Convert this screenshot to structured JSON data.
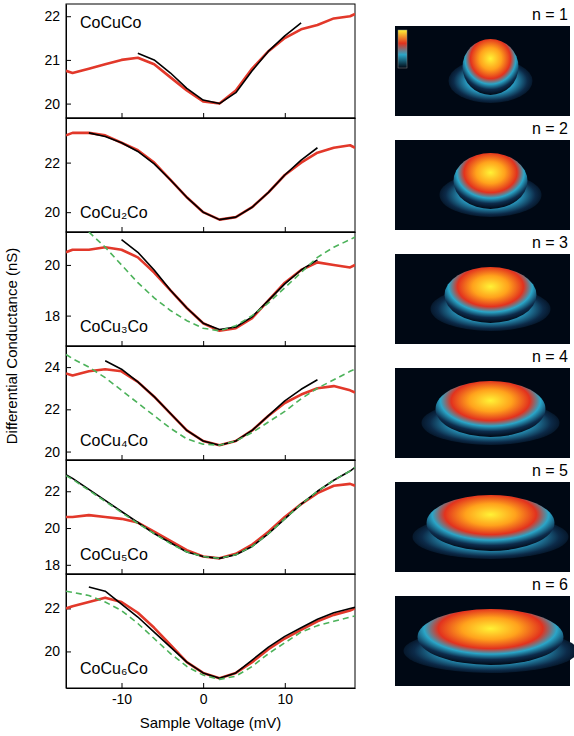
{
  "chart_data": [
    {
      "type": "line",
      "title": "CoCuCo",
      "y_label": "Differential Conductance (nS)",
      "annotations": [
        "n = 1"
      ],
      "xlim": [
        -16.8,
        18.6
      ],
      "xticks": [
        -10,
        0,
        10
      ],
      "ylim": [
        19.67,
        22.28
      ],
      "yticks": [
        20,
        21,
        22
      ],
      "tick_labels": "y",
      "x": [
        -16.8,
        -16,
        -14,
        -12,
        -10,
        -8,
        -6,
        -4,
        -2,
        0,
        2,
        4,
        6,
        8,
        10,
        12,
        14,
        16,
        18,
        18.6
      ],
      "series": [
        {
          "color": "#e2382a",
          "line_style": "solid",
          "values": [
            20.75,
            20.7,
            20.8,
            20.9,
            21.0,
            21.05,
            20.9,
            20.6,
            20.3,
            20.05,
            20.0,
            20.3,
            20.8,
            21.2,
            21.5,
            21.7,
            21.8,
            21.95,
            22.0,
            22.05
          ]
        },
        {
          "color": "#000000",
          "line_style": "solid",
          "values": [
            null,
            null,
            null,
            null,
            null,
            21.15,
            21.0,
            20.7,
            20.35,
            20.08,
            20.0,
            20.25,
            20.75,
            21.2,
            21.55,
            21.85,
            null,
            null,
            null,
            null
          ]
        }
      ]
    },
    {
      "type": "line",
      "title": "CoCu₂Co",
      "annotations": [
        "n = 2"
      ],
      "xlim": [
        -16.8,
        18.6
      ],
      "xticks": [
        -10,
        0,
        10
      ],
      "ylim": [
        19.2,
        23.8
      ],
      "yticks": [
        20,
        22
      ],
      "tick_labels": "y",
      "x": [
        -16.8,
        -16,
        -14,
        -12,
        -10,
        -8,
        -6,
        -4,
        -2,
        0,
        2,
        4,
        6,
        8,
        10,
        12,
        14,
        16,
        18,
        18.6
      ],
      "series": [
        {
          "color": "#e2382a",
          "line_style": "solid",
          "values": [
            23.1,
            23.2,
            23.2,
            23.1,
            22.8,
            22.5,
            22.0,
            21.3,
            20.6,
            20.0,
            19.7,
            19.8,
            20.2,
            20.8,
            21.5,
            22.0,
            22.4,
            22.6,
            22.7,
            22.6
          ]
        },
        {
          "color": "#000000",
          "line_style": "solid",
          "values": [
            null,
            null,
            23.2,
            23.05,
            22.8,
            22.45,
            21.95,
            21.3,
            20.6,
            20.0,
            19.7,
            19.8,
            20.2,
            20.8,
            21.5,
            22.1,
            22.6,
            null,
            null,
            null
          ]
        }
      ]
    },
    {
      "type": "line",
      "title": "CoCu₃Co",
      "annotations": [
        "n = 3"
      ],
      "xlim": [
        -16.8,
        18.6
      ],
      "xticks": [
        -10,
        0,
        10
      ],
      "ylim": [
        16.8,
        21.3
      ],
      "yticks": [
        18,
        20
      ],
      "tick_labels": "y",
      "x": [
        -16.8,
        -16,
        -14,
        -12,
        -10,
        -8,
        -6,
        -4,
        -2,
        0,
        2,
        4,
        6,
        8,
        10,
        12,
        14,
        16,
        18,
        18.6
      ],
      "series": [
        {
          "color": "#e2382a",
          "line_style": "solid",
          "values": [
            20.5,
            20.6,
            20.6,
            20.7,
            20.6,
            20.3,
            19.7,
            19.0,
            18.3,
            17.7,
            17.4,
            17.5,
            17.9,
            18.6,
            19.3,
            19.8,
            20.1,
            20.0,
            19.9,
            20.0
          ]
        },
        {
          "color": "#000000",
          "line_style": "solid",
          "values": [
            null,
            null,
            null,
            null,
            21.0,
            20.5,
            19.8,
            19.0,
            18.3,
            17.7,
            17.45,
            17.55,
            17.95,
            18.6,
            19.25,
            19.8,
            20.2,
            null,
            null,
            null
          ]
        },
        {
          "color": "#4cb25a",
          "line_style": "dashed",
          "values": [
            null,
            null,
            21.3,
            20.7,
            20.0,
            19.3,
            18.7,
            18.2,
            17.8,
            17.5,
            17.4,
            17.6,
            18.0,
            18.5,
            19.1,
            19.7,
            20.3,
            20.7,
            21.0,
            21.1
          ]
        }
      ]
    },
    {
      "type": "line",
      "title": "CoCu₄Co",
      "annotations": [
        "n = 4"
      ],
      "xlim": [
        -16.8,
        18.6
      ],
      "xticks": [
        -10,
        0,
        10
      ],
      "ylim": [
        19.6,
        25.0
      ],
      "yticks": [
        20,
        22,
        24
      ],
      "tick_labels": "y",
      "x": [
        -16.8,
        -16,
        -14,
        -12,
        -10,
        -8,
        -6,
        -4,
        -2,
        0,
        2,
        4,
        6,
        8,
        10,
        12,
        14,
        16,
        18,
        18.6
      ],
      "series": [
        {
          "color": "#e2382a",
          "line_style": "solid",
          "values": [
            23.7,
            23.6,
            23.8,
            23.9,
            23.8,
            23.3,
            22.6,
            21.8,
            21.0,
            20.5,
            20.3,
            20.5,
            21.0,
            21.7,
            22.3,
            22.7,
            23.0,
            23.1,
            22.9,
            22.8
          ]
        },
        {
          "color": "#000000",
          "line_style": "solid",
          "values": [
            null,
            null,
            null,
            24.3,
            23.9,
            23.3,
            22.6,
            21.8,
            21.0,
            20.5,
            20.3,
            20.5,
            21.0,
            21.7,
            22.4,
            22.95,
            23.4,
            null,
            null,
            null
          ]
        },
        {
          "color": "#4cb25a",
          "line_style": "dashed",
          "values": [
            24.6,
            24.4,
            24.0,
            23.5,
            22.9,
            22.3,
            21.7,
            21.1,
            20.6,
            20.35,
            20.3,
            20.5,
            20.9,
            21.4,
            21.9,
            22.5,
            23.0,
            23.4,
            23.8,
            23.9
          ]
        }
      ]
    },
    {
      "type": "line",
      "title": "CoCu₅Co",
      "annotations": [
        "n = 5"
      ],
      "xlim": [
        -16.8,
        18.6
      ],
      "xticks": [
        -10,
        0,
        10
      ],
      "ylim": [
        17.5,
        23.7
      ],
      "yticks": [
        18,
        20,
        22
      ],
      "tick_labels": "y",
      "x": [
        -16.8,
        -16,
        -14,
        -12,
        -10,
        -8,
        -6,
        -4,
        -2,
        0,
        2,
        4,
        6,
        8,
        10,
        12,
        14,
        16,
        18,
        18.6
      ],
      "series": [
        {
          "color": "#e2382a",
          "line_style": "solid",
          "values": [
            20.6,
            20.6,
            20.7,
            20.6,
            20.5,
            20.3,
            19.8,
            19.3,
            18.8,
            18.45,
            18.35,
            18.6,
            19.1,
            19.8,
            20.6,
            21.3,
            21.9,
            22.3,
            22.4,
            22.3
          ]
        },
        {
          "color": "#000000",
          "line_style": "solid",
          "values": [
            22.9,
            22.7,
            22.1,
            21.5,
            20.9,
            20.3,
            19.7,
            19.2,
            18.7,
            18.45,
            18.35,
            18.55,
            19.0,
            19.7,
            20.5,
            21.3,
            22.0,
            22.6,
            23.1,
            23.3
          ]
        },
        {
          "color": "#4cb25a",
          "line_style": "dashed",
          "values": [
            22.85,
            22.65,
            22.05,
            21.45,
            20.85,
            20.25,
            19.7,
            19.15,
            18.7,
            18.45,
            18.35,
            18.55,
            19.0,
            19.7,
            20.5,
            21.3,
            22.0,
            22.6,
            23.1,
            23.3
          ]
        }
      ]
    },
    {
      "type": "line",
      "title": "CoCu₆Co",
      "x_label": "Sample Voltage (mV)",
      "annotations": [
        "n = 6"
      ],
      "xlim": [
        -16.8,
        18.6
      ],
      "xticks": [
        -10,
        0,
        10
      ],
      "ylim": [
        18.3,
        23.6
      ],
      "yticks": [
        20,
        22
      ],
      "x": [
        -16.8,
        -16,
        -14,
        -12,
        -10,
        -8,
        -6,
        -4,
        -2,
        0,
        2,
        4,
        6,
        8,
        10,
        12,
        14,
        16,
        18,
        18.6
      ],
      "series": [
        {
          "color": "#e2382a",
          "line_style": "solid",
          "values": [
            22.0,
            22.1,
            22.3,
            22.5,
            22.3,
            21.8,
            21.1,
            20.3,
            19.5,
            19.0,
            18.75,
            19.0,
            19.5,
            20.1,
            20.6,
            21.0,
            21.4,
            21.7,
            21.9,
            22.0
          ]
        },
        {
          "color": "#000000",
          "line_style": "solid",
          "values": [
            null,
            null,
            23.0,
            22.8,
            22.2,
            21.6,
            20.9,
            20.2,
            19.5,
            19.0,
            18.75,
            19.0,
            19.6,
            20.2,
            20.7,
            21.1,
            21.5,
            21.8,
            22.0,
            22.05
          ]
        },
        {
          "color": "#4cb25a",
          "line_style": "dashed",
          "values": [
            22.8,
            22.75,
            22.6,
            22.3,
            21.9,
            21.3,
            20.6,
            19.9,
            19.3,
            18.9,
            18.7,
            18.85,
            19.3,
            19.9,
            20.4,
            20.9,
            21.2,
            21.4,
            21.6,
            21.65
          ]
        }
      ]
    }
  ]
}
